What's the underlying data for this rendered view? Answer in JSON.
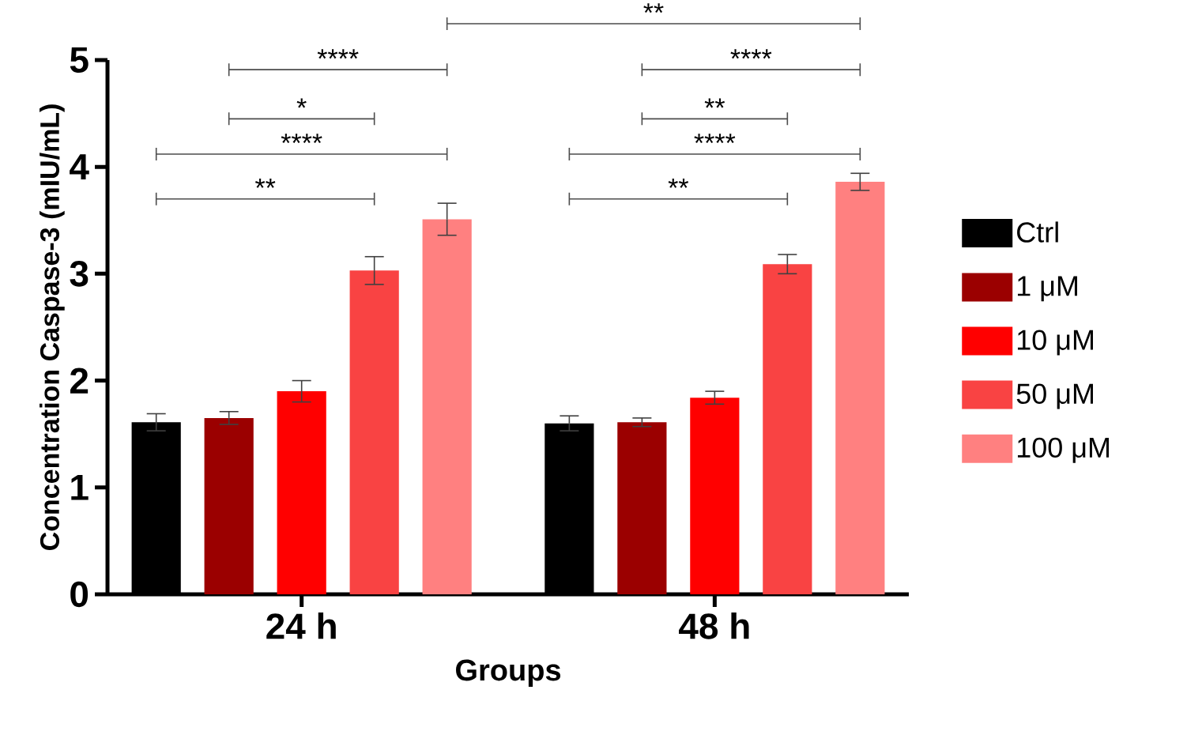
{
  "chart_data": {
    "type": "bar",
    "xlabel": "Groups",
    "ylabel": "Concentration Caspase-3 (mIU/mL)",
    "categories": [
      "24 h",
      "48 h"
    ],
    "series": [
      {
        "name": "Ctrl",
        "color": "#000000",
        "values": [
          1.61,
          1.6
        ],
        "errors": [
          0.08,
          0.07
        ]
      },
      {
        "name": "1 μM",
        "color": "#9b0000",
        "values": [
          1.65,
          1.61
        ],
        "errors": [
          0.06,
          0.04
        ]
      },
      {
        "name": "10 μM",
        "color": "#ff0000",
        "values": [
          1.9,
          1.84
        ],
        "errors": [
          0.1,
          0.06
        ]
      },
      {
        "name": "50 μM",
        "color": "#f94343",
        "values": [
          3.03,
          3.09
        ],
        "errors": [
          0.13,
          0.09
        ]
      },
      {
        "name": "100 μM",
        "color": "#ff8080",
        "values": [
          3.51,
          3.86
        ],
        "errors": [
          0.15,
          0.08
        ]
      }
    ],
    "ylim": [
      0,
      5
    ],
    "yticks": [
      0,
      1,
      2,
      3,
      4,
      5
    ],
    "legend": "right",
    "annotations": [
      "**",
      "****",
      "*",
      "****",
      "**",
      "****",
      "**",
      "****",
      "**"
    ]
  }
}
